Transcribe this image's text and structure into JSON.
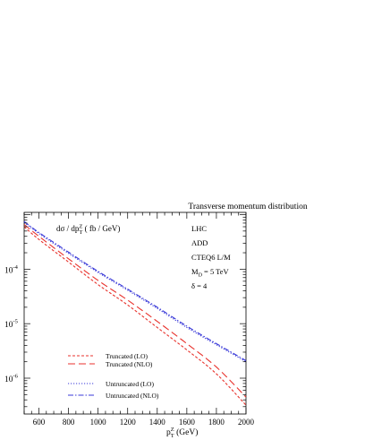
{
  "chart_data": {
    "type": "line",
    "title": "Transverse momentum distribution",
    "ylabel_parts": {
      "main": "dσ / dp",
      "sub": "T",
      "sup": "Z",
      "tail": " ( fb / GeV)"
    },
    "xlabel_parts": {
      "main": "p",
      "sub": "T",
      "sup": "Z",
      "tail": " (GeV)"
    },
    "xlim": [
      500,
      2000
    ],
    "ylim": [
      2.2e-07,
      0.0011
    ],
    "yscale": "log",
    "x_ticks": [
      "600",
      "800",
      "1000",
      "1200",
      "1400",
      "1600",
      "1800",
      "2000"
    ],
    "y_ticks": [
      {
        "base": "10",
        "exp": "-4",
        "value": 0.0001
      },
      {
        "base": "10",
        "exp": "-5",
        "value": 1e-05
      },
      {
        "base": "10",
        "exp": "-6",
        "value": 1e-06
      }
    ],
    "annotations": [
      {
        "text": "LHC"
      },
      {
        "text": "ADD"
      },
      {
        "text": "CTEQ6 L/M"
      },
      {
        "base": "M",
        "sub": "D",
        "tail": " = 5 TeV"
      },
      {
        "text": "δ = 4"
      }
    ],
    "legend_placement": "bottom-left",
    "x": [
      500,
      600,
      800,
      1000,
      1200,
      1400,
      1600,
      1800,
      2000
    ],
    "series": [
      {
        "name": "Truncated (LO)",
        "color": "#e8322c",
        "dash": "3,2",
        "values": [
          0.0006,
          0.00035,
          0.000135,
          5.2e-05,
          2.2e-05,
          8.5e-06,
          3.3e-06,
          1.2e-06,
          3.2e-07
        ]
      },
      {
        "name": "Truncated (NLO)",
        "color": "#e8322c",
        "dash": "8,4",
        "values": [
          0.00066,
          0.0004,
          0.000155,
          6.2e-05,
          2.7e-05,
          1.1e-05,
          4.3e-06,
          1.6e-06,
          4.5e-07
        ]
      },
      {
        "name": "Untruncated (LO)",
        "color": "#3a3ad8",
        "dash": "1.2,1.8",
        "values": [
          0.00072,
          0.00045,
          0.000195,
          8.7e-05,
          4.1e-05,
          1.9e-05,
          8.5e-06,
          4.1e-06,
          2e-06
        ]
      },
      {
        "name": "Untruncated (NLO)",
        "color": "#3a3ad8",
        "dash": "6,2,1.5,2",
        "values": [
          0.00075,
          0.00047,
          0.000205,
          9.1e-05,
          4.3e-05,
          2e-05,
          9e-06,
          4.3e-06,
          2.1e-06
        ]
      }
    ]
  }
}
